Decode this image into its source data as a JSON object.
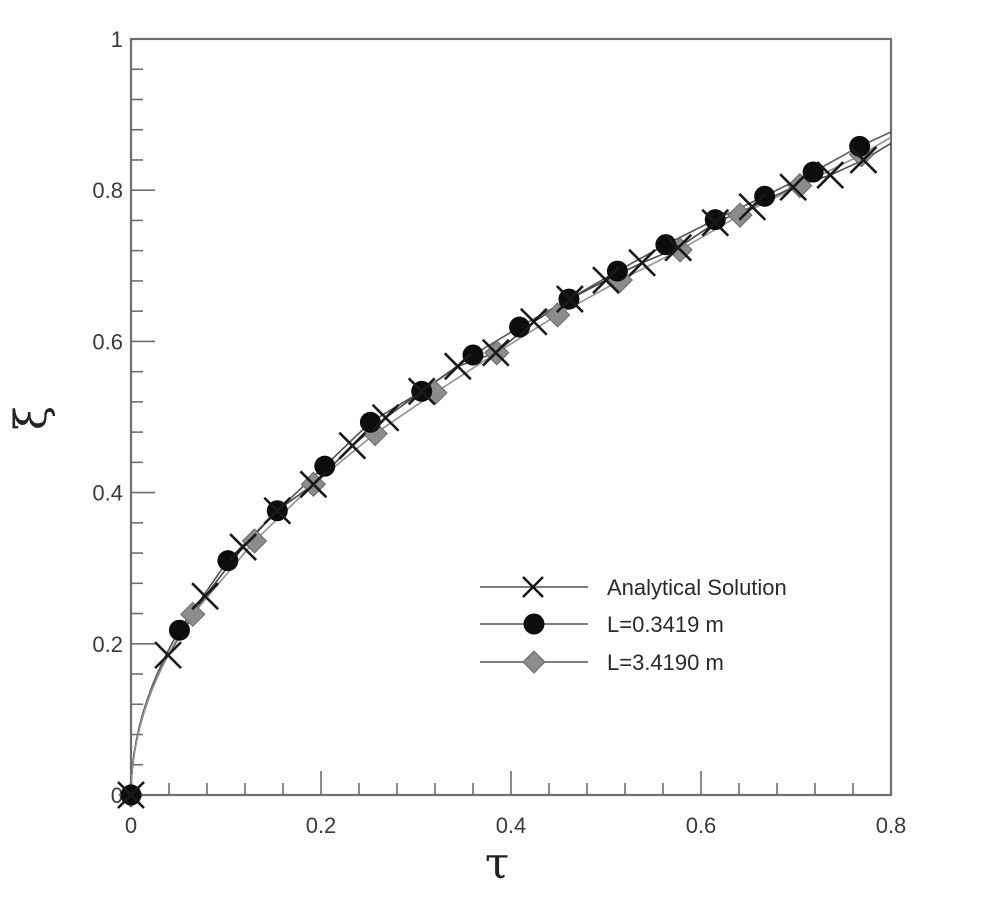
{
  "chart_data": {
    "type": "line",
    "title": "",
    "xlabel": "τ",
    "ylabel": "ξ",
    "xlim": [
      0,
      0.8
    ],
    "ylim": [
      0,
      1
    ],
    "xticks": [
      0,
      0.2,
      0.4,
      0.6,
      0.8
    ],
    "xtick_labels": [
      "0",
      "0.2",
      "0.4",
      "0.6",
      "0.8"
    ],
    "yticks": [
      0,
      0.2,
      0.4,
      0.6,
      0.8,
      1
    ],
    "ytick_labels": [
      "0",
      "0.2",
      "0.4",
      "0.6",
      "0.8",
      "1"
    ],
    "minor_tick_step": 0.04,
    "grid": false,
    "legend_position": "lower right",
    "series": [
      {
        "name": "Analytical Solution",
        "marker": "x",
        "color": "#1a1a1a",
        "line_end": [
          0.8,
          0.862
        ],
        "points": [
          [
            0.0,
            0.0
          ],
          [
            0.039,
            0.185
          ],
          [
            0.078,
            0.263
          ],
          [
            0.118,
            0.328
          ],
          [
            0.154,
            0.376
          ],
          [
            0.192,
            0.411
          ],
          [
            0.233,
            0.462
          ],
          [
            0.268,
            0.499
          ],
          [
            0.306,
            0.534
          ],
          [
            0.344,
            0.567
          ],
          [
            0.384,
            0.585
          ],
          [
            0.424,
            0.626
          ],
          [
            0.462,
            0.656
          ],
          [
            0.5,
            0.681
          ],
          [
            0.538,
            0.704
          ],
          [
            0.576,
            0.724
          ],
          [
            0.615,
            0.757
          ],
          [
            0.654,
            0.778
          ],
          [
            0.697,
            0.804
          ],
          [
            0.736,
            0.82
          ],
          [
            0.771,
            0.84
          ]
        ]
      },
      {
        "name": "L=0.3419 m",
        "marker": "circle",
        "color": "#0d0d0d",
        "line_end": [
          0.8,
          0.877
        ],
        "points": [
          [
            0.0,
            0.0
          ],
          [
            0.051,
            0.218
          ],
          [
            0.102,
            0.31
          ],
          [
            0.154,
            0.376
          ],
          [
            0.204,
            0.435
          ],
          [
            0.252,
            0.493
          ],
          [
            0.306,
            0.534
          ],
          [
            0.36,
            0.582
          ],
          [
            0.409,
            0.619
          ],
          [
            0.461,
            0.656
          ],
          [
            0.512,
            0.693
          ],
          [
            0.563,
            0.728
          ],
          [
            0.615,
            0.761
          ],
          [
            0.667,
            0.792
          ],
          [
            0.718,
            0.824
          ],
          [
            0.767,
            0.858
          ]
        ]
      },
      {
        "name": "L=3.4190 m",
        "marker": "diamond",
        "color": "#8c8c8c",
        "line_end": [
          0.8,
          0.87
        ],
        "points": [
          [
            0.0,
            0.0
          ],
          [
            0.065,
            0.239
          ],
          [
            0.13,
            0.336
          ],
          [
            0.192,
            0.411
          ],
          [
            0.257,
            0.478
          ],
          [
            0.32,
            0.532
          ],
          [
            0.385,
            0.585
          ],
          [
            0.449,
            0.635
          ],
          [
            0.515,
            0.681
          ],
          [
            0.578,
            0.721
          ],
          [
            0.641,
            0.767
          ],
          [
            0.704,
            0.806
          ],
          [
            0.769,
            0.847
          ]
        ]
      }
    ]
  },
  "axes": {
    "xlabel": "τ",
    "ylabel": "ξ"
  },
  "legend": {
    "items": [
      {
        "label": "Analytical Solution",
        "marker": "x"
      },
      {
        "label": "L=0.3419 m",
        "marker": "circle"
      },
      {
        "label": "L=3.4190 m",
        "marker": "diamond"
      }
    ]
  },
  "colors": {
    "axis": "#6e6e6e",
    "analytical": "#1a1a1a",
    "circle_fill": "#0d0d0d",
    "diamond_fill": "#8c8c8c",
    "line": "#555555"
  }
}
